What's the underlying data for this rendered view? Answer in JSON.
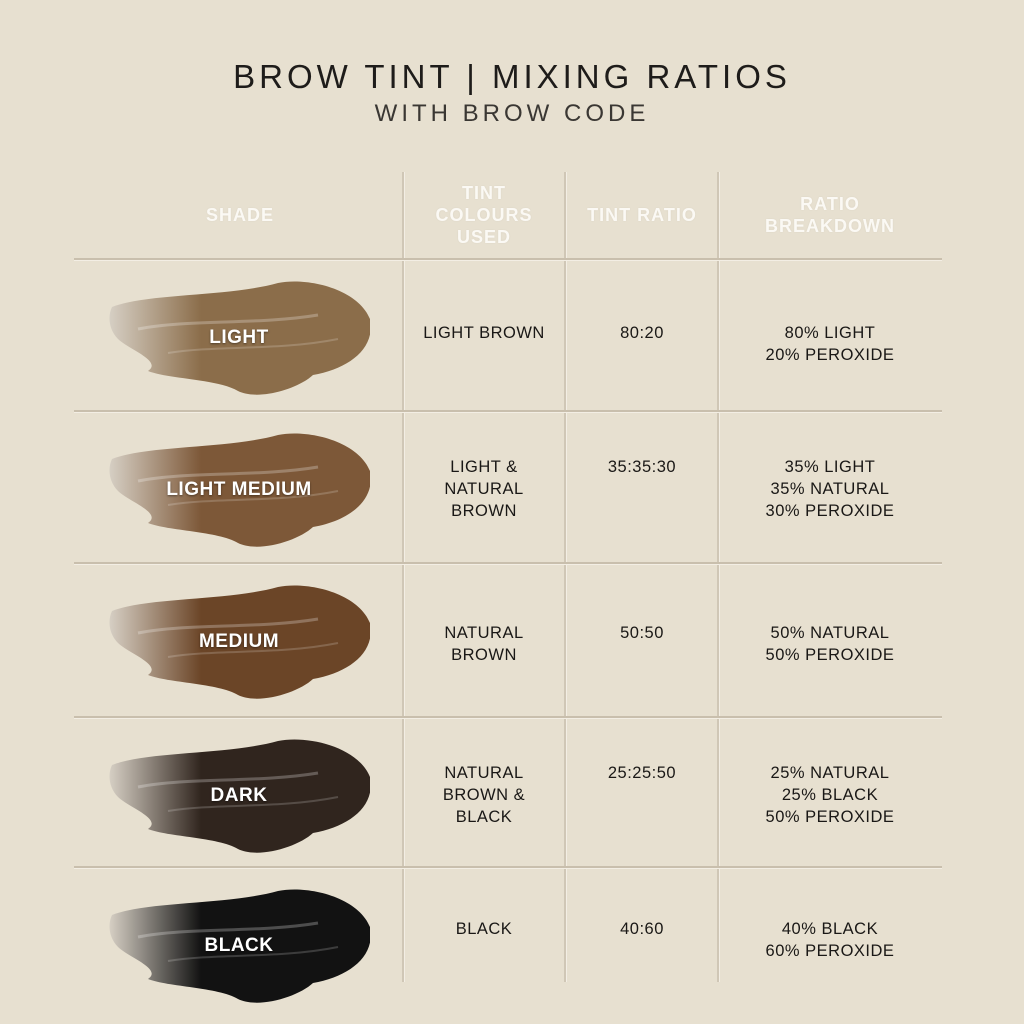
{
  "title": "BROW TINT | MIXING RATIOS",
  "subtitle": "WITH BROW CODE",
  "headers": {
    "shade": "SHADE",
    "tint_colours": "TINT\nCOLOURS\nUSED",
    "tint_ratio": "TINT RATIO",
    "ratio_breakdown": "RATIO\nBREAKDOWN"
  },
  "rows": [
    {
      "shade": "LIGHT",
      "colour": "#8b6d4a",
      "tint_colours": "LIGHT BROWN",
      "tint_ratio": "80:20",
      "breakdown": "80% LIGHT\n20% PEROXIDE"
    },
    {
      "shade": "LIGHT MEDIUM",
      "colour": "#7d5838",
      "tint_colours": "LIGHT &\nNATURAL\nBROWN",
      "tint_ratio": "35:35:30",
      "breakdown": "35% LIGHT\n35% NATURAL\n30% PEROXIDE"
    },
    {
      "shade": "MEDIUM",
      "colour": "#6b4527",
      "tint_colours": "NATURAL\nBROWN",
      "tint_ratio": "50:50",
      "breakdown": "50% NATURAL\n50% PEROXIDE"
    },
    {
      "shade": "DARK",
      "colour": "#30251e",
      "tint_colours": "NATURAL\nBROWN &\nBLACK",
      "tint_ratio": "25:25:50",
      "breakdown": "25% NATURAL\n25% BLACK\n50% PEROXIDE"
    },
    {
      "shade": "BLACK",
      "colour": "#121212",
      "tint_colours": "BLACK",
      "tint_ratio": "40:60",
      "breakdown": "40% BLACK\n60% PEROXIDE"
    }
  ]
}
